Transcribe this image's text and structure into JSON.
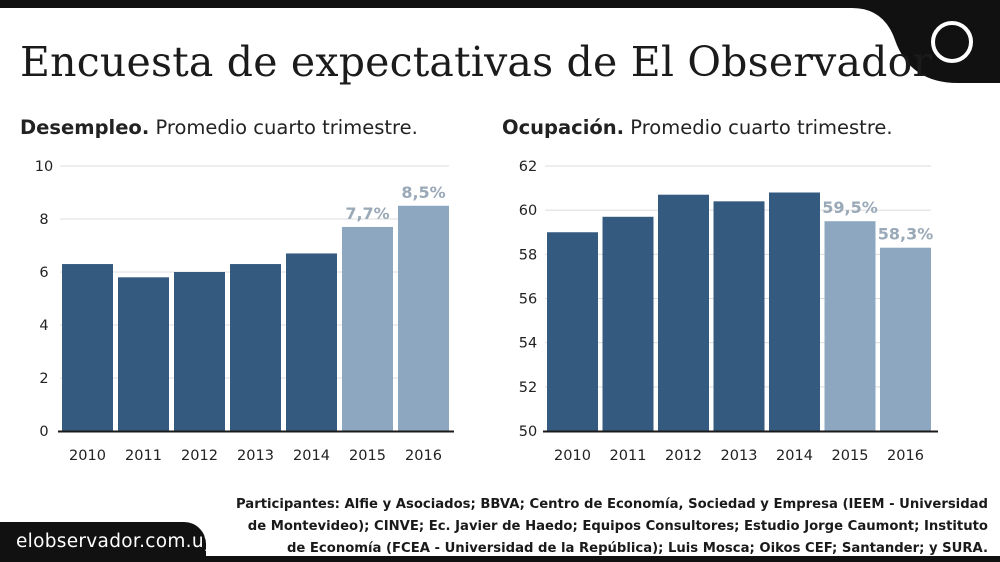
{
  "title": "Encuesta de expectativas de El Observador",
  "brand": "elobservador.com.uy",
  "participants": "Participantes: Alfie y Asociados; BBVA; Centro de Economía, Sociedad y Empresa (IEEM - Universidad de Montevideo); CINVE; Ec. Javier de Haedo; Equipos Consultores; Estudio Jorge Caumont; Instituto de Economía (FCEA - Universidad de la República); Luis Mosca; Oikos CEF; Santander; y SURA.",
  "colors": {
    "dark_bar": "#355a80",
    "light_bar": "#8ea7c1",
    "label_light": "#9aa9b8"
  },
  "chart_data": [
    {
      "type": "bar",
      "title_bold": "Desempleo.",
      "title_rest": "Promedio cuarto trimestre.",
      "categories": [
        "2010",
        "2011",
        "2012",
        "2013",
        "2014",
        "2015",
        "2016"
      ],
      "values": [
        6.3,
        5.8,
        6.0,
        6.3,
        6.7,
        7.7,
        8.5
      ],
      "highlight": [
        false,
        false,
        false,
        false,
        false,
        true,
        true
      ],
      "data_labels": [
        "",
        "",
        "",
        "",
        "",
        "7,7%",
        "8,5%"
      ],
      "ylim": [
        0,
        10
      ],
      "yticks": [
        "0",
        "2",
        "4",
        "6",
        "8",
        "10"
      ],
      "ytick_values": [
        0,
        2,
        4,
        6,
        8,
        10
      ],
      "grid": true
    },
    {
      "type": "bar",
      "title_bold": "Ocupación.",
      "title_rest": "Promedio cuarto trimestre.",
      "categories": [
        "2010",
        "2011",
        "2012",
        "2013",
        "2014",
        "2015",
        "2016"
      ],
      "values": [
        59.0,
        59.7,
        60.7,
        60.4,
        60.8,
        59.5,
        58.3
      ],
      "highlight": [
        false,
        false,
        false,
        false,
        false,
        true,
        true
      ],
      "data_labels": [
        "",
        "",
        "",
        "",
        "",
        "59,5%",
        "58,3%"
      ],
      "ylim": [
        50,
        62
      ],
      "yticks": [
        "50",
        "52",
        "54",
        "56",
        "58",
        "60",
        "62"
      ],
      "ytick_values": [
        50,
        52,
        54,
        56,
        58,
        60,
        62
      ],
      "grid": true
    }
  ]
}
